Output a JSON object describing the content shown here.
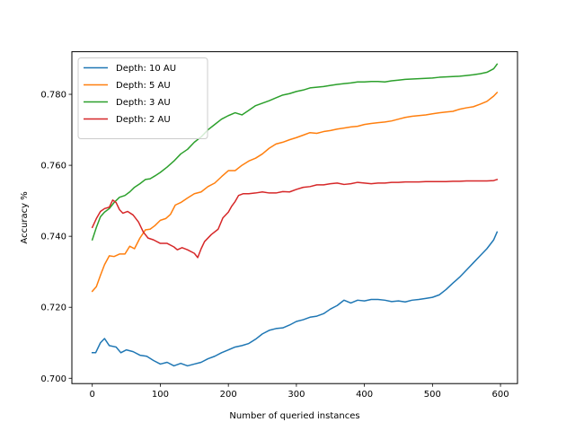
{
  "chart_data": {
    "type": "line",
    "title": "",
    "xlabel": "Number of queried instances",
    "ylabel": "Accuracy %",
    "xlim": [
      -30,
      625
    ],
    "ylim": [
      0.6985,
      0.792
    ],
    "xticks": [
      0,
      100,
      200,
      300,
      400,
      500,
      600
    ],
    "yticks": [
      0.7,
      0.72,
      0.74,
      0.76,
      0.78
    ],
    "xtick_labels": [
      "0",
      "100",
      "200",
      "300",
      "400",
      "500",
      "600"
    ],
    "ytick_labels": [
      "0.700",
      "0.720",
      "0.740",
      "0.760",
      "0.780"
    ],
    "grid": false,
    "legend_position": "top-left",
    "series": [
      {
        "name": "Depth: 10 AU",
        "color": "#1f77b4",
        "points": [
          [
            0,
            0.7072
          ],
          [
            5,
            0.7072
          ],
          [
            12,
            0.71
          ],
          [
            18,
            0.7112
          ],
          [
            25,
            0.7092
          ],
          [
            35,
            0.7088
          ],
          [
            42,
            0.7072
          ],
          [
            50,
            0.708
          ],
          [
            60,
            0.7075
          ],
          [
            70,
            0.7065
          ],
          [
            80,
            0.7062
          ],
          [
            90,
            0.705
          ],
          [
            100,
            0.704
          ],
          [
            110,
            0.7045
          ],
          [
            120,
            0.7035
          ],
          [
            130,
            0.7042
          ],
          [
            140,
            0.7035
          ],
          [
            150,
            0.704
          ],
          [
            160,
            0.7045
          ],
          [
            170,
            0.7055
          ],
          [
            180,
            0.7062
          ],
          [
            190,
            0.7072
          ],
          [
            200,
            0.708
          ],
          [
            210,
            0.7088
          ],
          [
            220,
            0.7092
          ],
          [
            230,
            0.7098
          ],
          [
            240,
            0.711
          ],
          [
            250,
            0.7125
          ],
          [
            260,
            0.7135
          ],
          [
            270,
            0.714
          ],
          [
            280,
            0.7142
          ],
          [
            290,
            0.715
          ],
          [
            300,
            0.716
          ],
          [
            310,
            0.7165
          ],
          [
            320,
            0.7172
          ],
          [
            330,
            0.7175
          ],
          [
            340,
            0.7182
          ],
          [
            350,
            0.7195
          ],
          [
            360,
            0.7205
          ],
          [
            370,
            0.722
          ],
          [
            380,
            0.7212
          ],
          [
            390,
            0.722
          ],
          [
            400,
            0.7218
          ],
          [
            410,
            0.7222
          ],
          [
            420,
            0.7222
          ],
          [
            430,
            0.722
          ],
          [
            440,
            0.7216
          ],
          [
            450,
            0.7218
          ],
          [
            460,
            0.7215
          ],
          [
            470,
            0.722
          ],
          [
            480,
            0.7222
          ],
          [
            490,
            0.7225
          ],
          [
            500,
            0.7228
          ],
          [
            510,
            0.7235
          ],
          [
            520,
            0.725
          ],
          [
            530,
            0.7268
          ],
          [
            540,
            0.7285
          ],
          [
            550,
            0.7305
          ],
          [
            560,
            0.7325
          ],
          [
            570,
            0.7345
          ],
          [
            580,
            0.7365
          ],
          [
            590,
            0.739
          ],
          [
            595,
            0.7412
          ]
        ]
      },
      {
        "name": "Depth: 5 AU",
        "color": "#ff7f0e",
        "points": [
          [
            0,
            0.7245
          ],
          [
            6,
            0.7258
          ],
          [
            12,
            0.729
          ],
          [
            18,
            0.732
          ],
          [
            25,
            0.7345
          ],
          [
            32,
            0.7343
          ],
          [
            40,
            0.735
          ],
          [
            48,
            0.735
          ],
          [
            55,
            0.7372
          ],
          [
            62,
            0.7365
          ],
          [
            70,
            0.7395
          ],
          [
            78,
            0.7418
          ],
          [
            85,
            0.742
          ],
          [
            92,
            0.743
          ],
          [
            100,
            0.7445
          ],
          [
            108,
            0.745
          ],
          [
            115,
            0.7462
          ],
          [
            122,
            0.7488
          ],
          [
            130,
            0.7495
          ],
          [
            140,
            0.7508
          ],
          [
            150,
            0.752
          ],
          [
            160,
            0.7525
          ],
          [
            170,
            0.754
          ],
          [
            180,
            0.755
          ],
          [
            190,
            0.7568
          ],
          [
            200,
            0.7585
          ],
          [
            210,
            0.7585
          ],
          [
            220,
            0.76
          ],
          [
            230,
            0.7612
          ],
          [
            240,
            0.762
          ],
          [
            250,
            0.7632
          ],
          [
            260,
            0.7648
          ],
          [
            270,
            0.766
          ],
          [
            280,
            0.7665
          ],
          [
            290,
            0.7672
          ],
          [
            300,
            0.7678
          ],
          [
            310,
            0.7685
          ],
          [
            320,
            0.7692
          ],
          [
            330,
            0.769
          ],
          [
            340,
            0.7695
          ],
          [
            350,
            0.7698
          ],
          [
            360,
            0.7702
          ],
          [
            370,
            0.7705
          ],
          [
            380,
            0.7708
          ],
          [
            390,
            0.771
          ],
          [
            400,
            0.7715
          ],
          [
            410,
            0.7718
          ],
          [
            420,
            0.772
          ],
          [
            430,
            0.7722
          ],
          [
            440,
            0.7725
          ],
          [
            450,
            0.773
          ],
          [
            460,
            0.7735
          ],
          [
            470,
            0.7738
          ],
          [
            480,
            0.774
          ],
          [
            490,
            0.7742
          ],
          [
            500,
            0.7745
          ],
          [
            510,
            0.7748
          ],
          [
            520,
            0.775
          ],
          [
            530,
            0.7752
          ],
          [
            540,
            0.7758
          ],
          [
            550,
            0.7762
          ],
          [
            560,
            0.7765
          ],
          [
            570,
            0.7772
          ],
          [
            580,
            0.778
          ],
          [
            590,
            0.7795
          ],
          [
            595,
            0.7805
          ]
        ]
      },
      {
        "name": "Depth: 3 AU",
        "color": "#2ca02c",
        "points": [
          [
            0,
            0.739
          ],
          [
            6,
            0.7425
          ],
          [
            12,
            0.7455
          ],
          [
            18,
            0.7468
          ],
          [
            25,
            0.7478
          ],
          [
            32,
            0.7495
          ],
          [
            40,
            0.751
          ],
          [
            48,
            0.7515
          ],
          [
            55,
            0.7525
          ],
          [
            62,
            0.7538
          ],
          [
            70,
            0.7548
          ],
          [
            78,
            0.756
          ],
          [
            85,
            0.7562
          ],
          [
            92,
            0.757
          ],
          [
            100,
            0.758
          ],
          [
            110,
            0.7595
          ],
          [
            120,
            0.7612
          ],
          [
            130,
            0.7632
          ],
          [
            140,
            0.7645
          ],
          [
            150,
            0.7665
          ],
          [
            160,
            0.768
          ],
          [
            170,
            0.77
          ],
          [
            180,
            0.7715
          ],
          [
            190,
            0.773
          ],
          [
            200,
            0.774
          ],
          [
            210,
            0.7748
          ],
          [
            220,
            0.7742
          ],
          [
            230,
            0.7755
          ],
          [
            240,
            0.7768
          ],
          [
            250,
            0.7775
          ],
          [
            260,
            0.7782
          ],
          [
            270,
            0.779
          ],
          [
            280,
            0.7798
          ],
          [
            290,
            0.7802
          ],
          [
            300,
            0.7808
          ],
          [
            310,
            0.7812
          ],
          [
            320,
            0.7818
          ],
          [
            330,
            0.782
          ],
          [
            340,
            0.7822
          ],
          [
            350,
            0.7825
          ],
          [
            360,
            0.7828
          ],
          [
            370,
            0.783
          ],
          [
            380,
            0.7832
          ],
          [
            390,
            0.7835
          ],
          [
            400,
            0.7835
          ],
          [
            410,
            0.7836
          ],
          [
            420,
            0.7836
          ],
          [
            430,
            0.7835
          ],
          [
            440,
            0.7838
          ],
          [
            450,
            0.784
          ],
          [
            460,
            0.7842
          ],
          [
            470,
            0.7843
          ],
          [
            480,
            0.7844
          ],
          [
            490,
            0.7845
          ],
          [
            500,
            0.7846
          ],
          [
            510,
            0.7848
          ],
          [
            520,
            0.7849
          ],
          [
            530,
            0.785
          ],
          [
            540,
            0.7851
          ],
          [
            550,
            0.7853
          ],
          [
            560,
            0.7855
          ],
          [
            570,
            0.7858
          ],
          [
            580,
            0.7862
          ],
          [
            590,
            0.7872
          ],
          [
            595,
            0.7885
          ]
        ]
      },
      {
        "name": "Depth: 2 AU",
        "color": "#d62728",
        "points": [
          [
            0,
            0.7425
          ],
          [
            6,
            0.745
          ],
          [
            12,
            0.747
          ],
          [
            18,
            0.7478
          ],
          [
            25,
            0.7482
          ],
          [
            30,
            0.7502
          ],
          [
            35,
            0.7495
          ],
          [
            40,
            0.7475
          ],
          [
            45,
            0.7465
          ],
          [
            52,
            0.747
          ],
          [
            60,
            0.746
          ],
          [
            68,
            0.744
          ],
          [
            75,
            0.7412
          ],
          [
            82,
            0.7395
          ],
          [
            90,
            0.739
          ],
          [
            100,
            0.738
          ],
          [
            110,
            0.738
          ],
          [
            120,
            0.737
          ],
          [
            125,
            0.7362
          ],
          [
            132,
            0.7368
          ],
          [
            140,
            0.7362
          ],
          [
            150,
            0.7352
          ],
          [
            155,
            0.734
          ],
          [
            160,
            0.7365
          ],
          [
            165,
            0.7385
          ],
          [
            175,
            0.7405
          ],
          [
            185,
            0.742
          ],
          [
            192,
            0.7452
          ],
          [
            200,
            0.7468
          ],
          [
            205,
            0.7485
          ],
          [
            210,
            0.7498
          ],
          [
            215,
            0.7515
          ],
          [
            222,
            0.752
          ],
          [
            230,
            0.752
          ],
          [
            240,
            0.7522
          ],
          [
            250,
            0.7525
          ],
          [
            260,
            0.7522
          ],
          [
            270,
            0.7522
          ],
          [
            280,
            0.7526
          ],
          [
            290,
            0.7525
          ],
          [
            300,
            0.7532
          ],
          [
            310,
            0.7538
          ],
          [
            320,
            0.754
          ],
          [
            330,
            0.7545
          ],
          [
            340,
            0.7545
          ],
          [
            350,
            0.7548
          ],
          [
            360,
            0.755
          ],
          [
            370,
            0.7546
          ],
          [
            380,
            0.7548
          ],
          [
            390,
            0.7552
          ],
          [
            400,
            0.755
          ],
          [
            410,
            0.7548
          ],
          [
            420,
            0.755
          ],
          [
            430,
            0.755
          ],
          [
            440,
            0.7552
          ],
          [
            450,
            0.7552
          ],
          [
            460,
            0.7553
          ],
          [
            470,
            0.7553
          ],
          [
            480,
            0.7553
          ],
          [
            490,
            0.7554
          ],
          [
            500,
            0.7554
          ],
          [
            510,
            0.7554
          ],
          [
            520,
            0.7554
          ],
          [
            530,
            0.7555
          ],
          [
            540,
            0.7555
          ],
          [
            550,
            0.7556
          ],
          [
            560,
            0.7556
          ],
          [
            570,
            0.7556
          ],
          [
            580,
            0.7556
          ],
          [
            590,
            0.7557
          ],
          [
            595,
            0.756
          ]
        ]
      }
    ]
  }
}
